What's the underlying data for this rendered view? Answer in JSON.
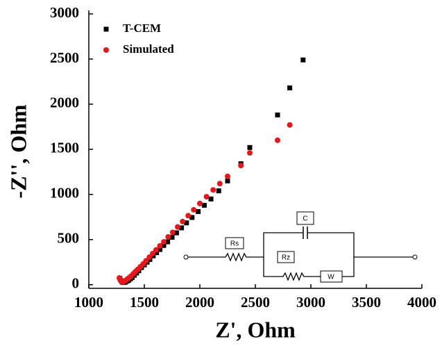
{
  "chart_data": {
    "type": "scatter",
    "x_label": "Z', Ohm",
    "y_label": "-Z'', Ohm",
    "xlim": [
      1000,
      4000
    ],
    "xticks": [
      1000,
      1500,
      2000,
      2500,
      3000,
      3500,
      4000
    ],
    "ylim": [
      -40,
      3000
    ],
    "yticks": [
      0,
      500,
      1000,
      1500,
      2000,
      2500,
      3000
    ],
    "legend": "upper left",
    "circuit_labels": [
      "Rs",
      "C",
      "Rz",
      "W"
    ],
    "series": [
      {
        "name": "T-CEM",
        "color": "#000000",
        "marker": "square",
        "x": [
          1280,
          1290,
          1300,
          1310,
          1320,
          1330,
          1345,
          1360,
          1375,
          1390,
          1410,
          1430,
          1450,
          1475,
          1500,
          1525,
          1550,
          1580,
          1610,
          1640,
          1675,
          1710,
          1750,
          1790,
          1835,
          1880,
          1930,
          1985,
          2040,
          2100,
          2170,
          2250,
          2370,
          2450,
          2700,
          2810,
          2930
        ],
        "values": [
          70,
          45,
          30,
          25,
          25,
          30,
          40,
          50,
          65,
          80,
          105,
          130,
          155,
          190,
          220,
          250,
          280,
          320,
          355,
          390,
          435,
          475,
          525,
          575,
          630,
          685,
          745,
          810,
          880,
          950,
          1040,
          1150,
          1340,
          1520,
          1880,
          2180,
          2490
        ]
      },
      {
        "name": "Simulated",
        "color": "#e8161b",
        "marker": "circle",
        "x": [
          1275,
          1285,
          1295,
          1305,
          1315,
          1330,
          1345,
          1360,
          1380,
          1400,
          1420,
          1440,
          1465,
          1490,
          1515,
          1545,
          1575,
          1605,
          1640,
          1675,
          1715,
          1755,
          1800,
          1845,
          1895,
          1945,
          2000,
          2060,
          2120,
          2180,
          2250,
          2370,
          2450,
          2700,
          2810
        ],
        "values": [
          75,
          50,
          35,
          30,
          35,
          45,
          60,
          75,
          95,
          120,
          145,
          170,
          200,
          230,
          265,
          305,
          345,
          385,
          430,
          475,
          530,
          580,
          640,
          700,
          765,
          830,
          900,
          975,
          1050,
          1120,
          1200,
          1320,
          1460,
          1600,
          1770
        ]
      }
    ]
  }
}
